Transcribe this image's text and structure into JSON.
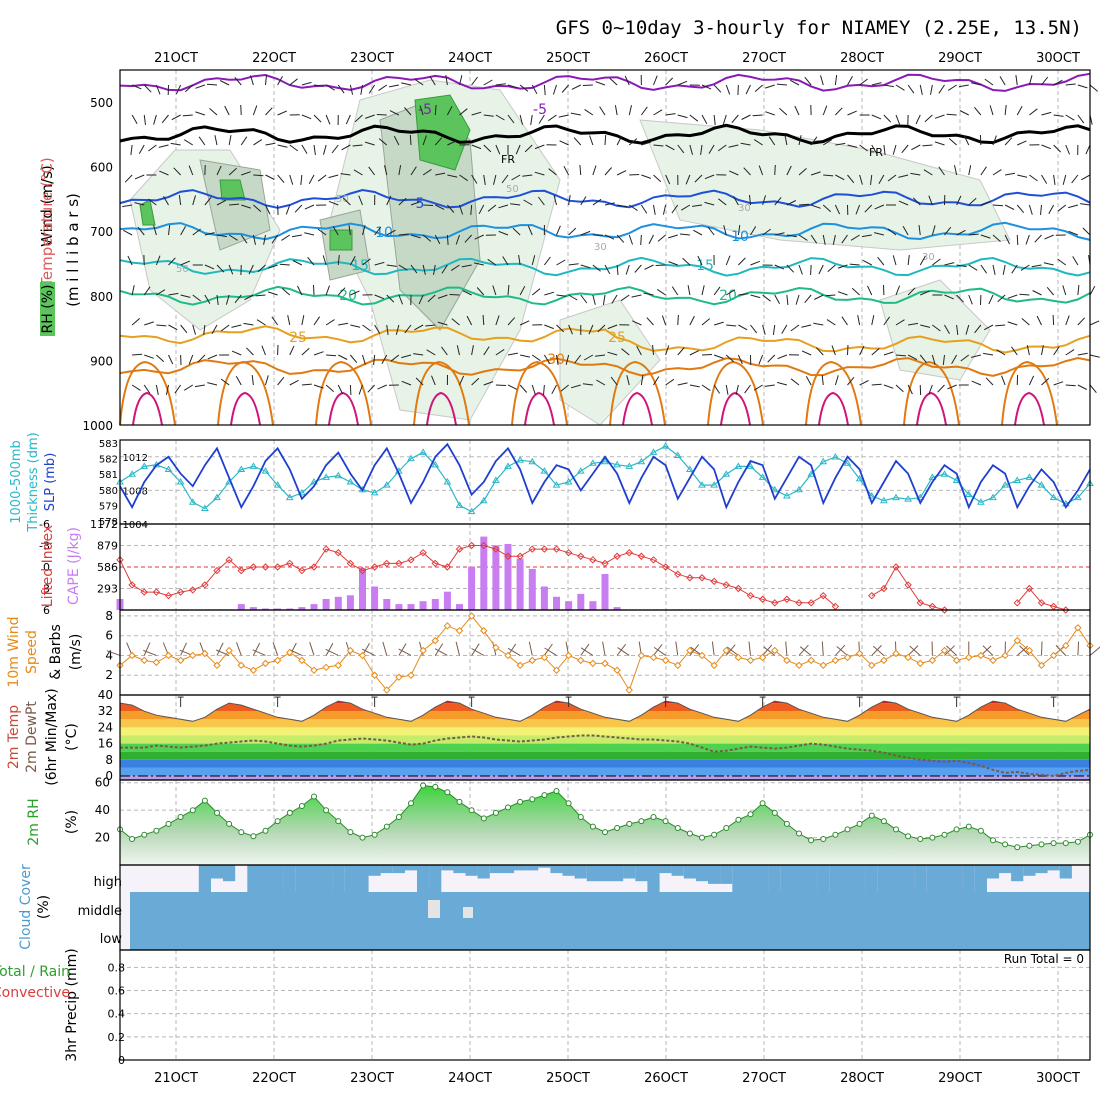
{
  "title": "GFS 0~10day 3-hourly for NIAMEY (2.25E, 13.5N)",
  "dates": [
    "21OCT",
    "22OCT",
    "23OCT",
    "24OCT",
    "25OCT",
    "26OCT",
    "27OCT",
    "28OCT",
    "29OCT",
    "30OCT"
  ],
  "colors": {
    "grid": "#b8b8b8",
    "rh_fill": "#e6f3e6",
    "cape": "#c87df0",
    "lifted": "#e03a3a",
    "slp": "#1f3fcf",
    "thickness": "#2ab8c8",
    "wind10": "#e68a1a",
    "dewpt": "#7a5a4a",
    "rh2m": "#3cb44b",
    "cloud": "#6aaad6",
    "cloud_bg": "#f6f2fa"
  },
  "panels": {
    "upper_air": {
      "label_wind": "Wind (m/s)",
      "label_temp": "Temperature (°C)",
      "label_rh": "RH (%)",
      "label_mb": "(m i l l i b a r s)",
      "pressure_ticks": [
        "500",
        "600",
        "700",
        "800",
        "900",
        "1000"
      ],
      "isotherm_labels": [
        "-5",
        "FR",
        "FR",
        "-5",
        "5",
        "10",
        "10",
        "15",
        "15",
        "20",
        "20",
        "25",
        "25",
        "30"
      ],
      "rh_labels": [
        "50",
        "50",
        "30",
        "30",
        "30",
        "50"
      ]
    },
    "thickness_slp": {
      "label_thickness": "1000-500mb",
      "label_thickness2": "Thickness (dm)",
      "label_slp": "SLP (mb)",
      "left_ticks": [
        "583",
        "582",
        "581",
        "580",
        "579",
        "578"
      ],
      "right_ticks": [
        "1012",
        "1008",
        "1004"
      ]
    },
    "cape_li": {
      "label_li": "Lifted Index",
      "label_cape": "CAPE (J/kg)",
      "li_ticks": [
        "-6",
        "-3",
        "0",
        "3",
        "6"
      ],
      "cape_ticks": [
        "1172",
        "879",
        "586",
        "293"
      ]
    },
    "wind10": {
      "label1": "10m Wind",
      "label2": "Speed",
      "label3": "& Barbs",
      "label4": "(m/s)",
      "ticks": [
        "8",
        "6",
        "4",
        "2"
      ]
    },
    "temp2m": {
      "label1": "2m Temp",
      "label2": "2m DewPt",
      "label3": "(6hr Min/Max)",
      "label4": "(°C)",
      "ticks": [
        "40",
        "32",
        "24",
        "16",
        "8",
        "0"
      ]
    },
    "rh2m": {
      "label1": "2m RH",
      "label2": "(%)",
      "ticks": [
        "60",
        "40",
        "20"
      ]
    },
    "cloud": {
      "label1": "Cloud Cover",
      "label2": "(%)",
      "levels": [
        "high",
        "middle",
        "low"
      ]
    },
    "precip": {
      "label1": "3hr Precip (mm)",
      "label2": "Total / Rain",
      "label3": "Convective",
      "run_total": "Run Total = 0",
      "ticks": [
        "0.8",
        "0.6",
        "0.4",
        "0.2",
        "0"
      ]
    }
  },
  "chart_data": [
    {
      "type": "line",
      "name": "Sea Level Pressure",
      "ylabel": "SLP (mb)",
      "ylim": [
        1004,
        1014
      ],
      "x_step_hours": 3,
      "values": [
        1008.5,
        1006,
        1009,
        1011,
        1012,
        1010,
        1008.5,
        1011,
        1013,
        1009.5,
        1006,
        1008.5,
        1011.5,
        1013,
        1010.5,
        1007,
        1008.5,
        1011,
        1012.5,
        1010,
        1008,
        1011,
        1013,
        1010,
        1006.5,
        1009,
        1012,
        1013.5,
        1011,
        1007.5,
        1009,
        1011.5,
        1013,
        1010.5,
        1006.5,
        1009,
        1011,
        1010.5,
        1008,
        1010,
        1012,
        1010,
        1006.5,
        1009.5,
        1012,
        1011,
        1007,
        1009.5,
        1012,
        1010.5,
        1006,
        1009,
        1011.5,
        1011,
        1007,
        1009.5,
        1012,
        1011,
        1006.5,
        1009.5,
        1012,
        1010.5,
        1006.5,
        1009,
        1011.5,
        1010,
        1006.5,
        1009,
        1011,
        1010,
        1006,
        1009,
        1011,
        1010,
        1006,
        1008.5,
        1010.5,
        1009,
        1006,
        1008,
        1010.5
      ]
    },
    {
      "type": "line",
      "name": "1000-500mb Thickness",
      "ylabel": "Thickness (dm)",
      "ylim": [
        578,
        583
      ],
      "x_step_hours": 3,
      "values": [
        580.5,
        581,
        581.5,
        581.6,
        581.3,
        580.5,
        579.2,
        578.8,
        579.5,
        580.5,
        581.3,
        581.5,
        581.2,
        580.3,
        579.5,
        579.8,
        580.5,
        580.8,
        580.9,
        580.5,
        580,
        579.8,
        580.3,
        581.2,
        582,
        582.4,
        581.6,
        580.5,
        579,
        578.6,
        579.3,
        580.6,
        581.5,
        581.9,
        581.8,
        581.2,
        580.3,
        580.5,
        581.2,
        581.7,
        581.8,
        581.6,
        581.5,
        581.8,
        582.4,
        582.8,
        582.2,
        581.3,
        580.3,
        580.3,
        581,
        581.5,
        581.5,
        580.8,
        580,
        579.6,
        580,
        581,
        581.8,
        582.1,
        581.7,
        580.7,
        579.6,
        579.3,
        579.5,
        579.4,
        579.5,
        580.8,
        581,
        580.6,
        579.7,
        579.2,
        579.5,
        580.3,
        580.6,
        580.8,
        580.3,
        579.5,
        579.1,
        579.5,
        580.4
      ]
    },
    {
      "type": "bar",
      "name": "CAPE",
      "ylabel": "CAPE (J/kg)",
      "ylim": [
        0,
        1172
      ],
      "x_step_hours": 3,
      "values": [
        150,
        0,
        0,
        0,
        0,
        0,
        0,
        0,
        0,
        0,
        80,
        40,
        20,
        20,
        20,
        40,
        80,
        150,
        180,
        200,
        570,
        320,
        150,
        80,
        80,
        120,
        150,
        250,
        80,
        590,
        1000,
        880,
        900,
        700,
        560,
        320,
        180,
        120,
        220,
        120,
        490,
        40,
        0,
        0,
        0,
        0,
        0,
        0,
        0,
        0,
        0,
        0,
        0,
        0,
        0,
        0,
        0,
        0,
        0,
        0,
        0,
        0,
        0,
        0,
        0,
        0,
        0,
        0,
        0,
        0,
        0,
        0,
        0,
        0,
        0,
        0,
        0,
        0,
        0,
        0,
        0
      ]
    },
    {
      "type": "line",
      "name": "Lifted Index",
      "ylabel": "Lifted Index",
      "ylim": [
        6,
        -6
      ],
      "x_step_hours": 3,
      "values": [
        -1,
        2.5,
        3.5,
        3.5,
        4,
        3.5,
        3.2,
        2.5,
        0.5,
        -1,
        0.5,
        0,
        0,
        0,
        -0.5,
        0.5,
        0,
        -2.5,
        -2,
        -0.5,
        0.5,
        0,
        -0.5,
        -0.5,
        -1,
        -2,
        -0.5,
        0,
        -2.5,
        -3,
        -3,
        -2.5,
        -1.5,
        -1.5,
        -2.5,
        -2.5,
        -2.5,
        -2,
        -1.5,
        -1,
        -0.5,
        -1.5,
        -2,
        -1.5,
        -1,
        0,
        1,
        1.5,
        1.5,
        2,
        2.5,
        3,
        4,
        4.5,
        5,
        4.5,
        5,
        5,
        4,
        5.5,
        null,
        null,
        4,
        3,
        0,
        2.5,
        5,
        5.5,
        6,
        null,
        null,
        null,
        null,
        null,
        5,
        3,
        5,
        5.5,
        6,
        null,
        null
      ]
    },
    {
      "type": "line",
      "name": "10m Wind Speed",
      "ylabel": "(m/s)",
      "ylim": [
        0,
        8
      ],
      "x_step_hours": 3,
      "values": [
        3,
        4,
        3.5,
        3.3,
        4,
        3.5,
        4,
        4.2,
        3,
        4.5,
        3,
        2.5,
        3.2,
        3.5,
        4.3,
        3.5,
        2.5,
        2.8,
        3,
        4.5,
        4,
        2,
        0.5,
        1.8,
        2,
        4.5,
        5.5,
        7,
        6.5,
        8,
        6.5,
        4.8,
        4,
        3,
        3.5,
        3.8,
        2.5,
        4,
        3.5,
        3.2,
        3.2,
        2.5,
        0.5,
        4,
        3.8,
        3.5,
        3,
        4.5,
        4,
        3,
        4.5,
        3.8,
        3.5,
        3.8,
        4.5,
        3.5,
        3,
        3.5,
        3,
        3.5,
        3.8,
        4.2,
        3,
        3.5,
        4.2,
        3.8,
        3.2,
        3.5,
        4.5,
        3.5,
        3.8,
        4,
        3.5,
        4,
        5.5,
        4.5,
        3,
        4,
        5,
        6.8,
        5
      ]
    },
    {
      "type": "area",
      "name": "2m Temperature",
      "ylabel": "(°C)",
      "ylim": [
        -2,
        40
      ],
      "x_step_hours": 3,
      "values": [
        36,
        35,
        32,
        30,
        29,
        28,
        27,
        29,
        33,
        36,
        35,
        33,
        31,
        29,
        28,
        27,
        30,
        34,
        37,
        36,
        33,
        31,
        29,
        28,
        27,
        30,
        34,
        37,
        36,
        33,
        31,
        29,
        28,
        27,
        30,
        34,
        37,
        36,
        33,
        31,
        29,
        28,
        27,
        30,
        34,
        37,
        36,
        33,
        31,
        29,
        28,
        27,
        30,
        34,
        37,
        36,
        33,
        31,
        29,
        28,
        27,
        30,
        34,
        37,
        36,
        33,
        31,
        29,
        28,
        27,
        30,
        34,
        37,
        36,
        33,
        31,
        29,
        28,
        27,
        30,
        33
      ]
    },
    {
      "type": "line",
      "name": "2m DewPt",
      "ylabel": "(°C)",
      "ylim": [
        -2,
        40
      ],
      "x_step_hours": 3,
      "values": [
        14,
        14,
        14,
        15,
        14.5,
        14,
        14.5,
        15,
        16,
        16.5,
        17,
        17.5,
        17,
        16,
        15,
        14.5,
        15,
        16,
        17.5,
        18,
        18.5,
        18,
        17.5,
        16.5,
        15.5,
        16,
        17.5,
        18.5,
        19,
        19.5,
        19,
        18,
        17.5,
        17,
        17.5,
        18,
        19,
        19.5,
        20,
        20,
        19.5,
        19,
        18.5,
        18,
        18,
        17.5,
        17,
        16,
        14,
        12,
        12.5,
        13.5,
        14.5,
        14,
        13.5,
        14,
        15,
        16,
        15.5,
        14.5,
        13.5,
        13,
        12.5,
        11.5,
        10,
        9,
        8,
        7.5,
        7,
        7.5,
        6.5,
        5,
        3,
        1.5,
        2,
        1,
        0.5,
        0,
        1.5,
        2.5,
        3
      ]
    },
    {
      "type": "area",
      "name": "2m RH",
      "ylabel": "(%)",
      "ylim": [
        0,
        60
      ],
      "x_step_hours": 3,
      "values": [
        26,
        19,
        22,
        25,
        30,
        35,
        40,
        47,
        38,
        30,
        24,
        21,
        25,
        32,
        38,
        43,
        50,
        40,
        32,
        24,
        20,
        22,
        28,
        35,
        45,
        58,
        57,
        53,
        46,
        40,
        34,
        38,
        42,
        46,
        48,
        51,
        54,
        45,
        35,
        28,
        24,
        27,
        30,
        32,
        35,
        32,
        27,
        23,
        20,
        22,
        27,
        33,
        37,
        45,
        38,
        30,
        23,
        18,
        19,
        22,
        26,
        30,
        36,
        32,
        26,
        21,
        19,
        20,
        22,
        26,
        28,
        25,
        18,
        15,
        13,
        14,
        15,
        16,
        16,
        17,
        22
      ]
    },
    {
      "type": "bar",
      "name": "3hr Precip",
      "ylabel": "3hr Precip (mm)",
      "ylim": [
        0,
        1
      ],
      "values": [],
      "total": 0
    }
  ]
}
